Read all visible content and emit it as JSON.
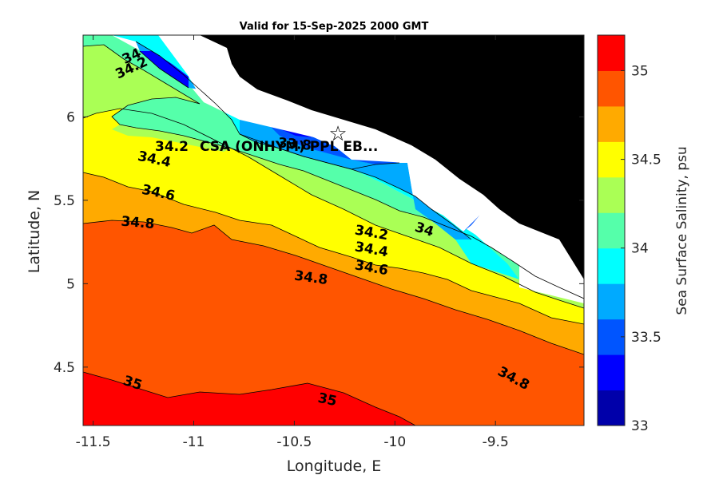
{
  "chart_data": {
    "type": "filled-contour",
    "title": "Valid for 15-Sep-2025 2000 GMT",
    "xlabel": "Longitude, E",
    "ylabel": "Latitude, N",
    "xlim": [
      -11.55,
      -9.06
    ],
    "ylim": [
      4.15,
      6.49
    ],
    "xticks": [
      -11.5,
      -11,
      -10.5,
      -10,
      -9.5
    ],
    "xtick_labels": [
      "-11.5",
      "-11",
      "-10.5",
      "-10",
      "-9.5"
    ],
    "yticks": [
      4.5,
      5,
      5.5,
      6
    ],
    "ytick_labels": [
      "4.5",
      "5",
      "5.5",
      "6"
    ],
    "colorbar": {
      "label": "Sea Surface Salinity, psu",
      "range": [
        33,
        35.2
      ],
      "ticks": [
        33,
        33.5,
        34,
        34.5,
        35
      ],
      "tick_labels": [
        "33",
        "33.5",
        "34",
        "34.5",
        "35"
      ],
      "colors": [
        "#0000AA",
        "#0000FF",
        "#0055FF",
        "#00AAFF",
        "#00FFFF",
        "#55FFAA",
        "#AAFF55",
        "#FFFF00",
        "#FFAA00",
        "#FF5500",
        "#FF0000"
      ]
    },
    "contour_levels": [
      33.4,
      33.6,
      33.8,
      34,
      34.2,
      34.4,
      34.6,
      34.8,
      35
    ],
    "contour_labels": [
      {
        "text": "34",
        "lon": -11.3,
        "lat": 6.34,
        "angle": -25
      },
      {
        "text": "34.2",
        "lon": -11.3,
        "lat": 6.27,
        "angle": -25
      },
      {
        "text": "34.4",
        "lon": -11.2,
        "lat": 5.72,
        "angle": 12
      },
      {
        "text": "34.6",
        "lon": -11.18,
        "lat": 5.52,
        "angle": 12
      },
      {
        "text": "34.8",
        "lon": -11.28,
        "lat": 5.34,
        "angle": 5
      },
      {
        "text": "34.2",
        "lon": -10.12,
        "lat": 5.28,
        "angle": 10
      },
      {
        "text": "34",
        "lon": -9.86,
        "lat": 5.3,
        "angle": 18
      },
      {
        "text": "34.4",
        "lon": -10.12,
        "lat": 5.18,
        "angle": 10
      },
      {
        "text": "34.6",
        "lon": -10.12,
        "lat": 5.07,
        "angle": 10
      },
      {
        "text": "34.8",
        "lon": -10.42,
        "lat": 5.01,
        "angle": 8
      },
      {
        "text": "35",
        "lon": -11.31,
        "lat": 4.38,
        "angle": 18
      },
      {
        "text": "35",
        "lon": -10.34,
        "lat": 4.28,
        "angle": 12
      },
      {
        "text": "34.8",
        "lon": -9.42,
        "lat": 4.41,
        "angle": 28
      },
      {
        "text": "33.8",
        "lon": -10.5,
        "lat": 5.81,
        "angle": 5
      }
    ],
    "site_marker": {
      "symbol": "☆",
      "lon": -10.29,
      "lat": 5.9,
      "label": "CSA (ONHYM) PPL EB..."
    },
    "site_prefix": "34.2"
  }
}
